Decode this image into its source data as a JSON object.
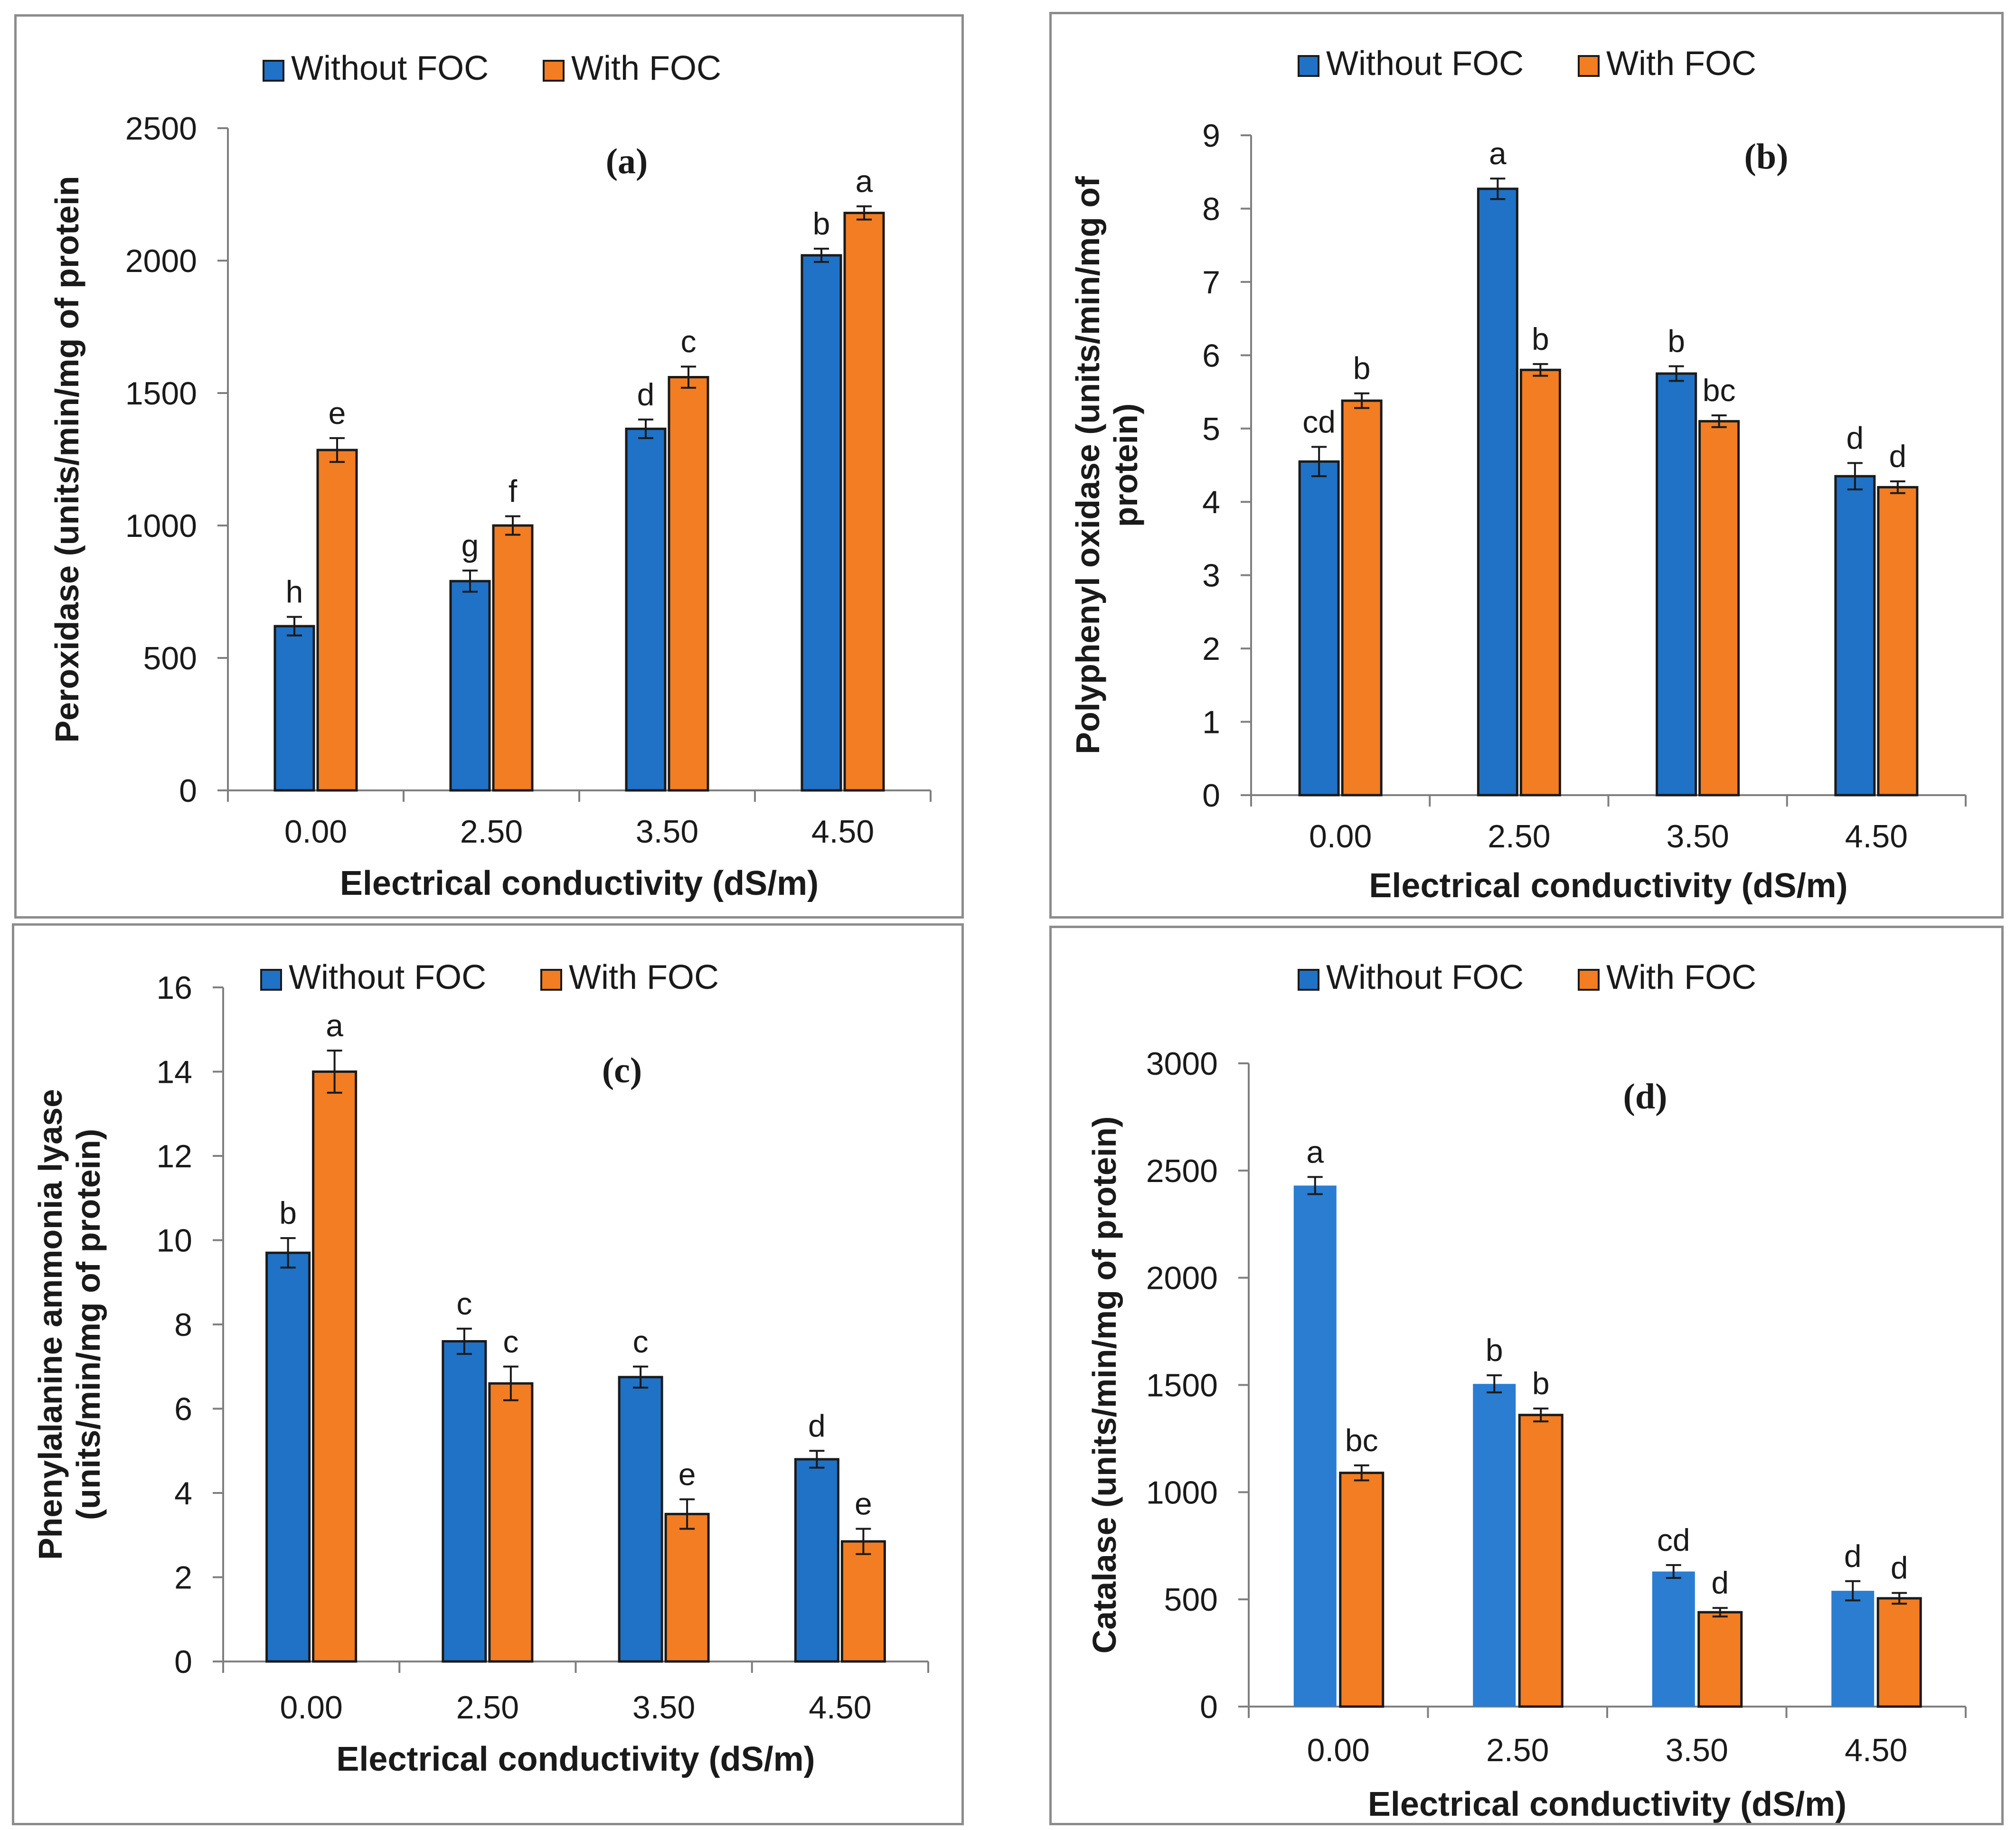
{
  "legend": {
    "without": "Without FOC",
    "with": "With FOC"
  },
  "colors": {
    "without": "#1f72c6",
    "with": "#f27d22",
    "without_light": "#2a7dd1",
    "axis": "#7f7f7f",
    "outline": "#1a1a1a"
  },
  "chart_data": [
    {
      "id": "a",
      "type": "bar",
      "label": "(a)",
      "ylabel_lines": [
        "Peroxidase (units/min/mg of protein"
      ],
      "xlabel": "Electrical conductivity (dS/m)",
      "categories": [
        "0.00",
        "2.50",
        "3.50",
        "4.50"
      ],
      "ylim": [
        0,
        2500
      ],
      "yticks": [
        "0",
        "500",
        "1000",
        "1500",
        "2000",
        "2500"
      ],
      "ytick_values": [
        0,
        500,
        1000,
        1500,
        2000,
        2500
      ],
      "series": [
        {
          "name": "Without FOC",
          "values": [
            620,
            790,
            1365,
            2020
          ],
          "errors": [
            35,
            40,
            35,
            25
          ],
          "letters": [
            "h",
            "g",
            "d",
            "b"
          ]
        },
        {
          "name": "With FOC",
          "values": [
            1285,
            1000,
            1560,
            2180
          ],
          "errors": [
            45,
            35,
            40,
            25
          ],
          "letters": [
            "e",
            "f",
            "c",
            "a"
          ]
        }
      ]
    },
    {
      "id": "b",
      "type": "bar",
      "label": "(b)",
      "ylabel_lines": [
        "Polyphenyl oxidase (units/min/mg of",
        "protein)"
      ],
      "xlabel": "Electrical conductivity (dS/m)",
      "categories": [
        "0.00",
        "2.50",
        "3.50",
        "4.50"
      ],
      "ylim": [
        0,
        9
      ],
      "yticks": [
        "0",
        "1",
        "2",
        "3",
        "4",
        "5",
        "6",
        "7",
        "8",
        "9"
      ],
      "ytick_values": [
        0,
        1,
        2,
        3,
        4,
        5,
        6,
        7,
        8,
        9
      ],
      "series": [
        {
          "name": "Without FOC",
          "values": [
            4.55,
            8.27,
            5.75,
            4.35
          ],
          "errors": [
            0.2,
            0.14,
            0.1,
            0.18
          ],
          "letters": [
            "cd",
            "a",
            "b",
            "d"
          ]
        },
        {
          "name": "With FOC",
          "values": [
            5.38,
            5.8,
            5.1,
            4.2
          ],
          "errors": [
            0.1,
            0.08,
            0.08,
            0.08
          ],
          "letters": [
            "b",
            "b",
            "bc",
            "d"
          ]
        }
      ]
    },
    {
      "id": "c",
      "type": "bar",
      "label": "(c)",
      "ylabel_lines": [
        "Phenylalanine ammonia lyase",
        "(units/min/mg of protein)"
      ],
      "xlabel": "Electrical conductivity (dS/m)",
      "categories": [
        "0.00",
        "2.50",
        "3.50",
        "4.50"
      ],
      "ylim": [
        0,
        16
      ],
      "yticks": [
        "0",
        "2",
        "4",
        "6",
        "8",
        "10",
        "12",
        "14",
        "16"
      ],
      "ytick_values": [
        0,
        2,
        4,
        6,
        8,
        10,
        12,
        14,
        16
      ],
      "series": [
        {
          "name": "Without FOC",
          "values": [
            9.7,
            7.6,
            6.75,
            4.8
          ],
          "errors": [
            0.35,
            0.3,
            0.25,
            0.2
          ],
          "letters": [
            "b",
            "c",
            "c",
            "d"
          ]
        },
        {
          "name": "With FOC",
          "values": [
            14.0,
            6.6,
            3.5,
            2.85
          ],
          "errors": [
            0.5,
            0.4,
            0.35,
            0.3
          ],
          "letters": [
            "a",
            "c",
            "e",
            "e"
          ]
        }
      ]
    },
    {
      "id": "d",
      "type": "bar",
      "label": "(d)",
      "ylabel_lines": [
        "Catalase (units/min/mg of protein)"
      ],
      "xlabel": "Electrical conductivity (dS/m)",
      "categories": [
        "0.00",
        "2.50",
        "3.50",
        "4.50"
      ],
      "ylim": [
        0,
        3000
      ],
      "yticks": [
        "0",
        "500",
        "1000",
        "1500",
        "2000",
        "2500",
        "3000"
      ],
      "ytick_values": [
        0,
        500,
        1000,
        1500,
        2000,
        2500,
        3000
      ],
      "series": [
        {
          "name": "Without FOC",
          "values": [
            2430,
            1505,
            630,
            540
          ],
          "errors": [
            40,
            40,
            30,
            45
          ],
          "letters": [
            "a",
            "b",
            "cd",
            "d"
          ]
        },
        {
          "name": "With FOC",
          "values": [
            1090,
            1360,
            440,
            505
          ],
          "errors": [
            35,
            30,
            20,
            25
          ],
          "letters": [
            "bc",
            "b",
            "d",
            "d"
          ]
        }
      ]
    }
  ]
}
